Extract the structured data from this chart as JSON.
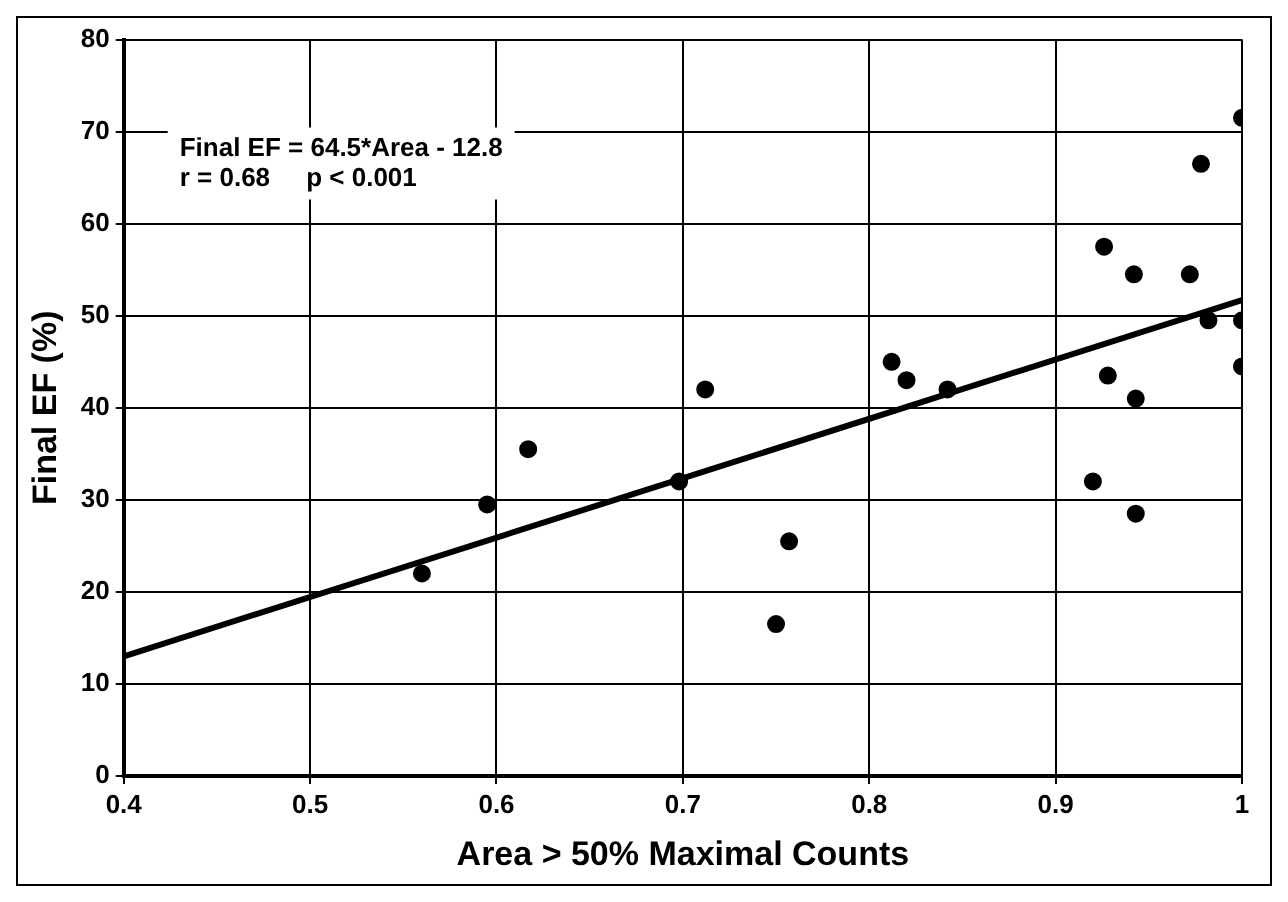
{
  "chart_data": {
    "type": "scatter",
    "xlabel": "Area > 50% Maximal Counts",
    "ylabel": "Final EF (%)",
    "annotations": [
      "Final EF = 64.5*Area - 12.8",
      "r = 0.68     p < 0.001"
    ],
    "series": [
      {
        "color": "#000000",
        "marker": "circle",
        "x": [
          0.56,
          0.595,
          0.617,
          0.698,
          0.712,
          0.75,
          0.757,
          0.812,
          0.82,
          0.842,
          0.92,
          0.926,
          0.928,
          0.942,
          0.943,
          0.943,
          0.972,
          0.978,
          0.982,
          1.0,
          1.0,
          1.0
        ],
        "values": [
          22,
          29.5,
          35.5,
          32,
          42,
          16.5,
          25.5,
          45,
          43,
          42,
          32,
          57.5,
          43.5,
          54.5,
          41,
          28.5,
          54.5,
          66.5,
          49.5,
          71.5,
          49.5,
          44.5
        ]
      },
      {
        "type": "line",
        "color": "#000000",
        "x": [
          0.4,
          1.0
        ],
        "values": [
          13,
          51.7
        ]
      }
    ],
    "xlim": [
      0.4,
      1
    ],
    "xticks": [
      0.4,
      0.5,
      0.6,
      0.7,
      0.8,
      0.9,
      1
    ],
    "ylim": [
      0,
      80
    ],
    "yticks": [
      0,
      10,
      20,
      30,
      40,
      50,
      60,
      70,
      80
    ],
    "grid": true,
    "legend": false
  }
}
